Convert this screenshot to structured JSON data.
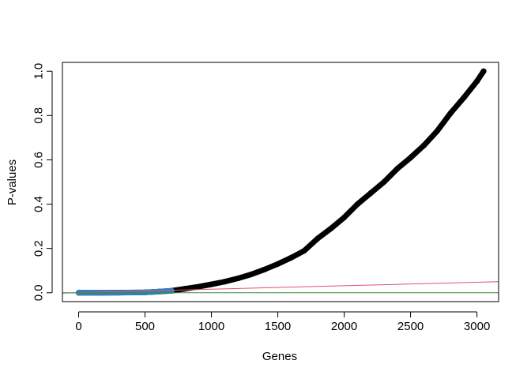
{
  "chart_data": {
    "type": "scatter",
    "title": "",
    "xlabel": "Genes",
    "ylabel": "P-values",
    "xlim": [
      -122,
      3163
    ],
    "ylim": [
      -0.04,
      1.04
    ],
    "xticks": [
      {
        "value": 0,
        "label": "0"
      },
      {
        "value": 500,
        "label": "500"
      },
      {
        "value": 1000,
        "label": "1000"
      },
      {
        "value": 1500,
        "label": "1500"
      },
      {
        "value": 2000,
        "label": "2000"
      },
      {
        "value": 2500,
        "label": "2500"
      },
      {
        "value": 3000,
        "label": "3000"
      }
    ],
    "yticks": [
      {
        "value": 0.0,
        "label": "0.0"
      },
      {
        "value": 0.2,
        "label": "0.2"
      },
      {
        "value": 0.4,
        "label": "0.4"
      },
      {
        "value": 0.6,
        "label": "0.6"
      },
      {
        "value": 0.8,
        "label": "0.8"
      },
      {
        "value": 1.0,
        "label": "1.0"
      }
    ],
    "grid": false,
    "legend": "none",
    "series": [
      {
        "color": "#000000",
        "style": "points",
        "points": [
          [
            0,
            0.0
          ],
          [
            300,
            0.0005
          ],
          [
            500,
            0.002
          ],
          [
            600,
            0.005
          ],
          [
            700,
            0.009
          ],
          [
            800,
            0.018
          ],
          [
            900,
            0.027
          ],
          [
            1000,
            0.038
          ],
          [
            1100,
            0.05
          ],
          [
            1200,
            0.065
          ],
          [
            1300,
            0.083
          ],
          [
            1400,
            0.105
          ],
          [
            1500,
            0.13
          ],
          [
            1600,
            0.158
          ],
          [
            1700,
            0.19
          ],
          [
            1800,
            0.245
          ],
          [
            1900,
            0.29
          ],
          [
            2000,
            0.34
          ],
          [
            2100,
            0.4
          ],
          [
            2200,
            0.45
          ],
          [
            2300,
            0.5
          ],
          [
            2400,
            0.56
          ],
          [
            2500,
            0.61
          ],
          [
            2600,
            0.665
          ],
          [
            2700,
            0.73
          ],
          [
            2800,
            0.81
          ],
          [
            2900,
            0.88
          ],
          [
            3000,
            0.955
          ],
          [
            3050,
            1.0
          ]
        ]
      },
      {
        "color": "#2f7fc1",
        "style": "points",
        "points": [
          [
            0,
            0.0
          ],
          [
            200,
            0.0003
          ],
          [
            400,
            0.001
          ],
          [
            500,
            0.002
          ],
          [
            600,
            0.005
          ],
          [
            700,
            0.009
          ]
        ]
      },
      {
        "color": "#df536b",
        "style": "line",
        "points": [
          [
            -122,
            -0.0016
          ],
          [
            3163,
            0.05
          ]
        ]
      },
      {
        "color": "#3a8a3a",
        "style": "line",
        "points": [
          [
            -122,
            0.0
          ],
          [
            3163,
            0.0
          ]
        ]
      }
    ]
  }
}
